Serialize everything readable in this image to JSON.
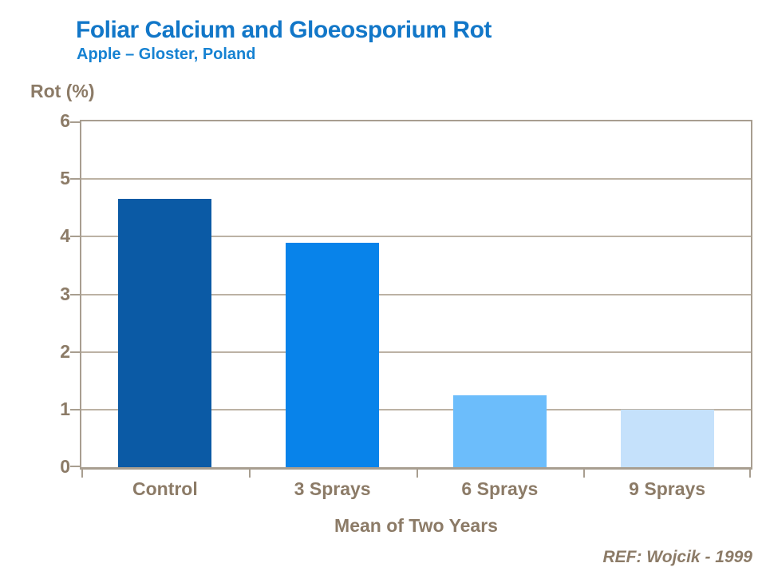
{
  "header": {
    "title": "Foliar Calcium and Gloeosporium Rot",
    "subtitle": "Apple – Gloster, Poland"
  },
  "footer": {
    "reference": "REF: Wojcik - 1999"
  },
  "colors": {
    "title_blue": "#1277C8",
    "subtitle_blue": "#1682D2",
    "label_brown": "#8C7B67",
    "axis_line": "#A89E90",
    "gridline": "#BCB2A4",
    "bar_colors": [
      "#0B5AA5",
      "#0883EA",
      "#6CBDFB",
      "#C5E1FB"
    ]
  },
  "chart_data": {
    "type": "bar",
    "title": "Foliar Calcium and Gloeosporium Rot",
    "subtitle": "Apple – Gloster, Poland",
    "categories": [
      "Control",
      "3 Sprays",
      "6 Sprays",
      "9 Sprays"
    ],
    "values": [
      4.65,
      3.9,
      1.25,
      1.0
    ],
    "bar_colors": [
      "#0B5AA5",
      "#0883EA",
      "#6CBDFB",
      "#C5E1FB"
    ],
    "ylabel": "Rot (%)",
    "xlabel": "Mean of Two Years",
    "ylim": [
      0,
      6
    ],
    "yticks": [
      0,
      1,
      2,
      3,
      4,
      5,
      6
    ],
    "grid": "horizontal",
    "legend": "none",
    "annotation": "REF: Wojcik - 1999"
  }
}
